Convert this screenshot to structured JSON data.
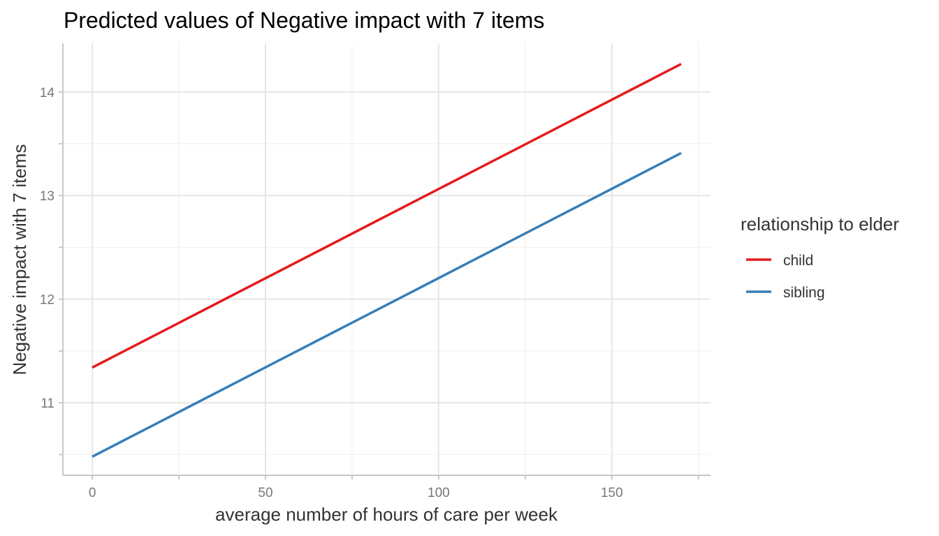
{
  "chart_data": {
    "type": "line",
    "title": "Predicted values of Negative impact with 7 items",
    "xlabel": "average number of hours of care per week",
    "ylabel": "Negative impact with 7 items",
    "xlim": [
      -8.5,
      178.5
    ],
    "ylim": [
      10.3,
      14.47
    ],
    "x_ticks": [
      0,
      50,
      100,
      150
    ],
    "x_tick_labels": [
      "0",
      "50",
      "100",
      "150"
    ],
    "x_minor_ticks": [
      25,
      75,
      125,
      175
    ],
    "y_ticks": [
      11,
      12,
      13,
      14
    ],
    "y_tick_labels": [
      "11",
      "12",
      "13",
      "14"
    ],
    "y_minor_ticks": [
      10.5,
      11.5,
      12.5,
      13.5
    ],
    "legend_title": "relationship to elder",
    "legend_position": "right",
    "series": [
      {
        "name": "child",
        "color": "#e41a1c",
        "x": [
          0,
          170
        ],
        "y": [
          11.34,
          14.27
        ]
      },
      {
        "name": "sibling",
        "color": "#377eb8",
        "x": [
          0,
          170
        ],
        "y": [
          10.48,
          13.41
        ]
      }
    ]
  }
}
